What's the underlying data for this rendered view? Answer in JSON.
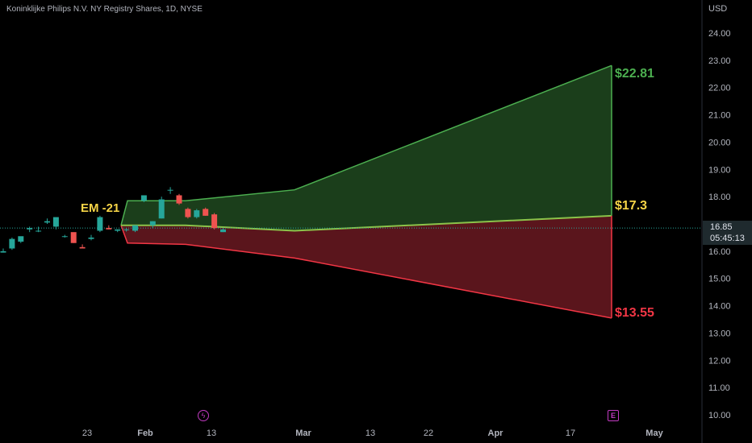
{
  "header": {
    "symbol_title": "Koninklijke Philips N.V. NY Registry Shares, 1D, NYSE",
    "currency": "USD"
  },
  "price_tag": {
    "price": "16.85",
    "countdown": "05:45:13"
  },
  "events": {
    "dividend_icon": "lightning-icon",
    "earnings_label": "E"
  },
  "colors": {
    "bull": "#26a69a",
    "bear": "#ef5350",
    "upper_band": "#4caf50",
    "lower_band": "#f23645",
    "upper_fill": "#1b3e1b",
    "lower_fill": "#5a151c",
    "mid_line": "#8bc34a",
    "label_yellow": "#f7d547",
    "text_muted": "#b2b5be"
  },
  "chart_data": {
    "type": "candlestick",
    "y_axis": {
      "ticks": [
        "24.00",
        "23.00",
        "22.00",
        "21.00",
        "20.00",
        "19.00",
        "18.00",
        "17.00",
        "16.00",
        "15.00",
        "14.00",
        "13.00",
        "12.00",
        "11.00",
        "10.00"
      ],
      "range": [
        9.5,
        25.0
      ]
    },
    "x_axis": {
      "ticks": [
        "23",
        "Feb",
        "13",
        "Mar",
        "13",
        "22",
        "Apr",
        "17",
        "May"
      ]
    },
    "annotation": "EM -21",
    "candles": [
      {
        "o": 15.95,
        "h": 16.1,
        "l": 15.95,
        "c": 16.0
      },
      {
        "o": 16.1,
        "h": 16.5,
        "l": 16.05,
        "c": 16.45
      },
      {
        "o": 16.35,
        "h": 16.5,
        "l": 16.3,
        "c": 16.55
      },
      {
        "o": 16.8,
        "h": 16.9,
        "l": 16.7,
        "c": 16.85
      },
      {
        "o": 16.75,
        "h": 16.9,
        "l": 16.7,
        "c": 16.75
      },
      {
        "o": 17.05,
        "h": 17.2,
        "l": 17.0,
        "c": 17.1
      },
      {
        "o": 16.9,
        "h": 17.1,
        "l": 16.8,
        "c": 17.25
      },
      {
        "o": 16.55,
        "h": 16.6,
        "l": 16.5,
        "c": 16.55
      },
      {
        "o": 16.7,
        "h": 16.6,
        "l": 16.3,
        "c": 16.3
      },
      {
        "o": 16.15,
        "h": 16.25,
        "l": 16.1,
        "c": 16.1
      },
      {
        "o": 16.45,
        "h": 16.6,
        "l": 16.4,
        "c": 16.5
      },
      {
        "o": 16.75,
        "h": 17.3,
        "l": 16.7,
        "c": 17.25
      },
      {
        "o": 16.85,
        "h": 16.95,
        "l": 16.8,
        "c": 16.8
      },
      {
        "o": 16.75,
        "h": 16.8,
        "l": 16.7,
        "c": 16.8
      },
      {
        "o": 16.78,
        "h": 16.85,
        "l": 16.72,
        "c": 16.8
      },
      {
        "o": 16.75,
        "h": 16.95,
        "l": 16.7,
        "c": 16.95
      },
      {
        "o": 17.85,
        "h": 18.05,
        "l": 17.8,
        "c": 18.05
      },
      {
        "o": 16.95,
        "h": 17.1,
        "l": 16.85,
        "c": 17.1
      },
      {
        "o": 17.2,
        "h": 18.0,
        "l": 17.2,
        "c": 17.9
      },
      {
        "o": 18.25,
        "h": 18.35,
        "l": 18.1,
        "c": 18.25
      },
      {
        "o": 18.05,
        "h": 18.1,
        "l": 17.7,
        "c": 17.75
      },
      {
        "o": 17.55,
        "h": 17.6,
        "l": 17.2,
        "c": 17.25
      },
      {
        "o": 17.25,
        "h": 17.55,
        "l": 17.2,
        "c": 17.5
      },
      {
        "o": 17.55,
        "h": 17.6,
        "l": 17.3,
        "c": 17.3
      },
      {
        "o": 17.35,
        "h": 17.4,
        "l": 16.8,
        "c": 16.85
      },
      {
        "o": 16.7,
        "h": 16.85,
        "l": 16.7,
        "c": 16.8
      }
    ],
    "expected_move": {
      "upper_label": "$22.81",
      "mid_label": "$17.3",
      "lower_label": "$13.55",
      "upper_end": 22.81,
      "mid_end": 17.3,
      "lower_end": 13.55
    },
    "last_price": 16.85
  }
}
